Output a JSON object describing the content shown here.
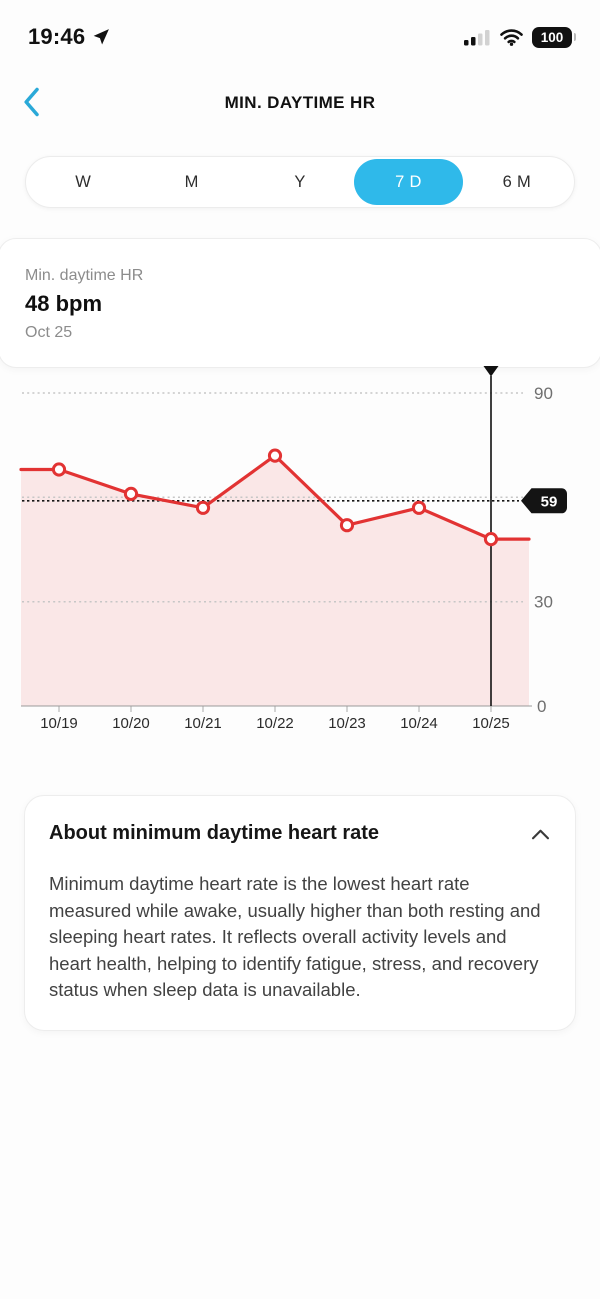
{
  "status_bar": {
    "time": "19:46",
    "battery_percent": "100"
  },
  "header": {
    "title": "MIN. DAYTIME HR"
  },
  "range_selector": {
    "options": [
      "W",
      "M",
      "Y",
      "7 D",
      "6 M"
    ],
    "selected": "7 D"
  },
  "summary_card": {
    "label": "Min. daytime HR",
    "value": "48 bpm",
    "date": "Oct 25"
  },
  "chart_data": {
    "type": "line",
    "title": "Min. daytime HR, last 7 days",
    "categories": [
      "10/19",
      "10/20",
      "10/21",
      "10/22",
      "10/23",
      "10/24",
      "10/25"
    ],
    "values": [
      68,
      61,
      57,
      72,
      52,
      57,
      48
    ],
    "ylim": [
      0,
      90
    ],
    "gridlines": [
      90,
      60,
      30
    ],
    "ytick_labels": [
      {
        "value": 90,
        "label": "90"
      },
      {
        "value": 30,
        "label": "30"
      },
      {
        "value": 0,
        "label": "0"
      }
    ],
    "average_marker": {
      "value": 59,
      "badge_label": "59"
    },
    "cursor": {
      "category": "10/25",
      "value": 48
    },
    "legend": "none",
    "grid": "dotted-horizontal",
    "line_color": "#e23333",
    "fill_color": "rgba(226,51,51,0.11)",
    "badge_color": "#141414",
    "axis_label_color": "#6f6f6f",
    "x_label_color": "#2b2b2b"
  },
  "about_card": {
    "title": "About minimum daytime heart rate",
    "body": "Minimum daytime heart rate is the lowest heart rate measured while awake, usually higher than both resting and sleeping heart rates. It reflects overall activity levels and heart health, helping to identify fatigue, stress, and recovery status when sleep data is unavailable."
  },
  "colors": {
    "accent_blue": "#2fb9ea",
    "back_chevron_blue": "#2aa9d8",
    "line_red": "#e23333",
    "badge_black": "#141414"
  }
}
